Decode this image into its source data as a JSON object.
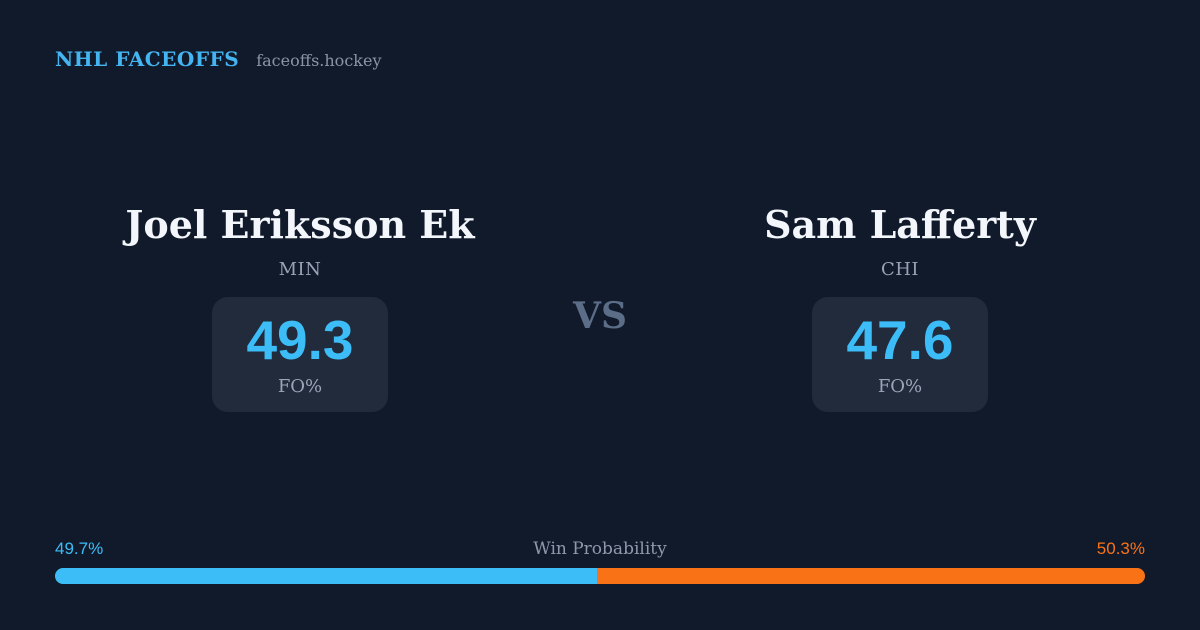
{
  "header": {
    "brand": "NHL FACEOFFS",
    "site": "faceoffs.hockey"
  },
  "matchup": {
    "vs_label": "VS",
    "players": [
      {
        "name": "Joel Eriksson Ek",
        "team": "MIN",
        "stat_value": "49.3",
        "stat_label": "FO%"
      },
      {
        "name": "Sam Lafferty",
        "team": "CHI",
        "stat_value": "47.6",
        "stat_label": "FO%"
      }
    ]
  },
  "win_probability": {
    "title": "Win Probability",
    "left_pct_label": "49.7%",
    "right_pct_label": "50.3%",
    "left_value": 49.7,
    "right_value": 50.3
  },
  "colors": {
    "background": "#111a2b",
    "panel": "#212b3c",
    "accent_blue": "#3cbdf8",
    "accent_orange": "#f97316",
    "brand_blue": "#45b5f2",
    "text_primary": "#f3f6fa",
    "text_muted": "#98a3b6"
  }
}
